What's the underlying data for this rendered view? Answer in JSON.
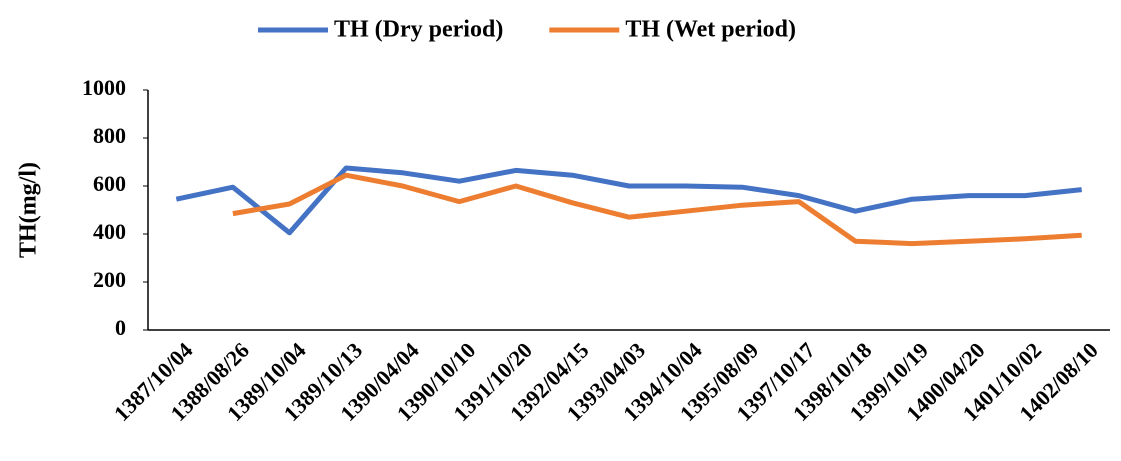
{
  "chart_data": {
    "type": "line",
    "y_label": "TH(mg/l)",
    "categories": [
      "1387/10/04",
      "1388/08/26",
      "1389/10/04",
      "1389/10/13",
      "1390/04/04",
      "1390/10/10",
      "1391/10/20",
      "1392/04/15",
      "1393/04/03",
      "1394/10/04",
      "1395/08/09",
      "1397/10/17",
      "1398/10/18",
      "1399/10/19",
      "1400/04/20",
      "1401/10/02",
      "1402/08/10"
    ],
    "series": [
      {
        "name": "TH (Dry period)",
        "color": "#4472c4",
        "values": [
          545,
          595,
          405,
          675,
          655,
          620,
          665,
          645,
          600,
          600,
          595,
          560,
          495,
          545,
          560,
          560,
          585
        ]
      },
      {
        "name": "TH (Wet period)",
        "color": "#ed7d31",
        "values": [
          null,
          485,
          525,
          645,
          600,
          535,
          600,
          530,
          470,
          495,
          520,
          535,
          370,
          360,
          370,
          380,
          395
        ]
      }
    ],
    "ylim": [
      0,
      1000
    ],
    "yticks": [
      0,
      200,
      400,
      600,
      800,
      1000
    ],
    "grid": false,
    "legend": "top"
  }
}
